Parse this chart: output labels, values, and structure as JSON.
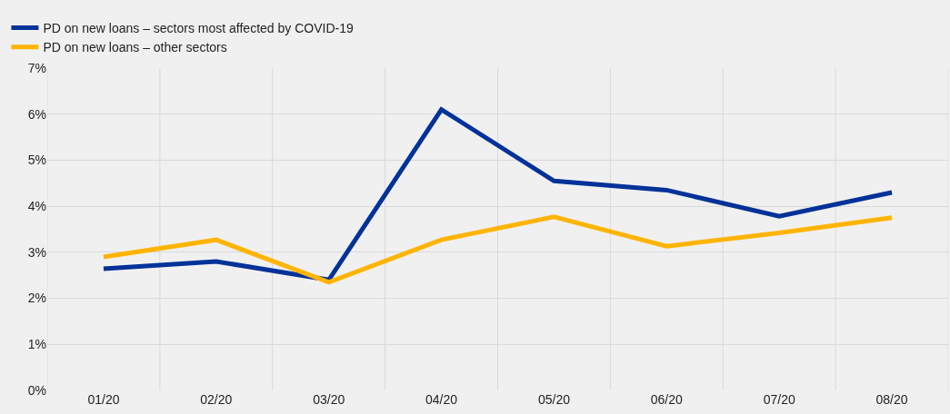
{
  "chart_data": {
    "type": "line",
    "categories": [
      "01/20",
      "02/20",
      "03/20",
      "04/20",
      "05/20",
      "06/20",
      "07/20",
      "08/20"
    ],
    "series": [
      {
        "name": "PD on new loans – sectors most affected by COVID-19",
        "color": "#003299",
        "values": [
          2.64,
          2.8,
          2.4,
          6.1,
          4.55,
          4.35,
          3.78,
          4.3
        ]
      },
      {
        "name": "PD on new loans – other sectors",
        "color": "#ffb400",
        "values": [
          2.9,
          3.27,
          2.35,
          3.27,
          3.77,
          3.13,
          3.42,
          3.75
        ]
      }
    ],
    "ylim": [
      0,
      7
    ],
    "yticks": [
      {
        "value": 0,
        "label": "0%"
      },
      {
        "value": 1,
        "label": "1%"
      },
      {
        "value": 2,
        "label": "2%"
      },
      {
        "value": 3,
        "label": "3%"
      },
      {
        "value": 4,
        "label": "4%"
      },
      {
        "value": 5,
        "label": "5%"
      },
      {
        "value": 6,
        "label": "6%"
      },
      {
        "value": 7,
        "label": "7%"
      }
    ],
    "grid": true,
    "legend": "top left",
    "marker": "none",
    "line_style": "solid"
  }
}
